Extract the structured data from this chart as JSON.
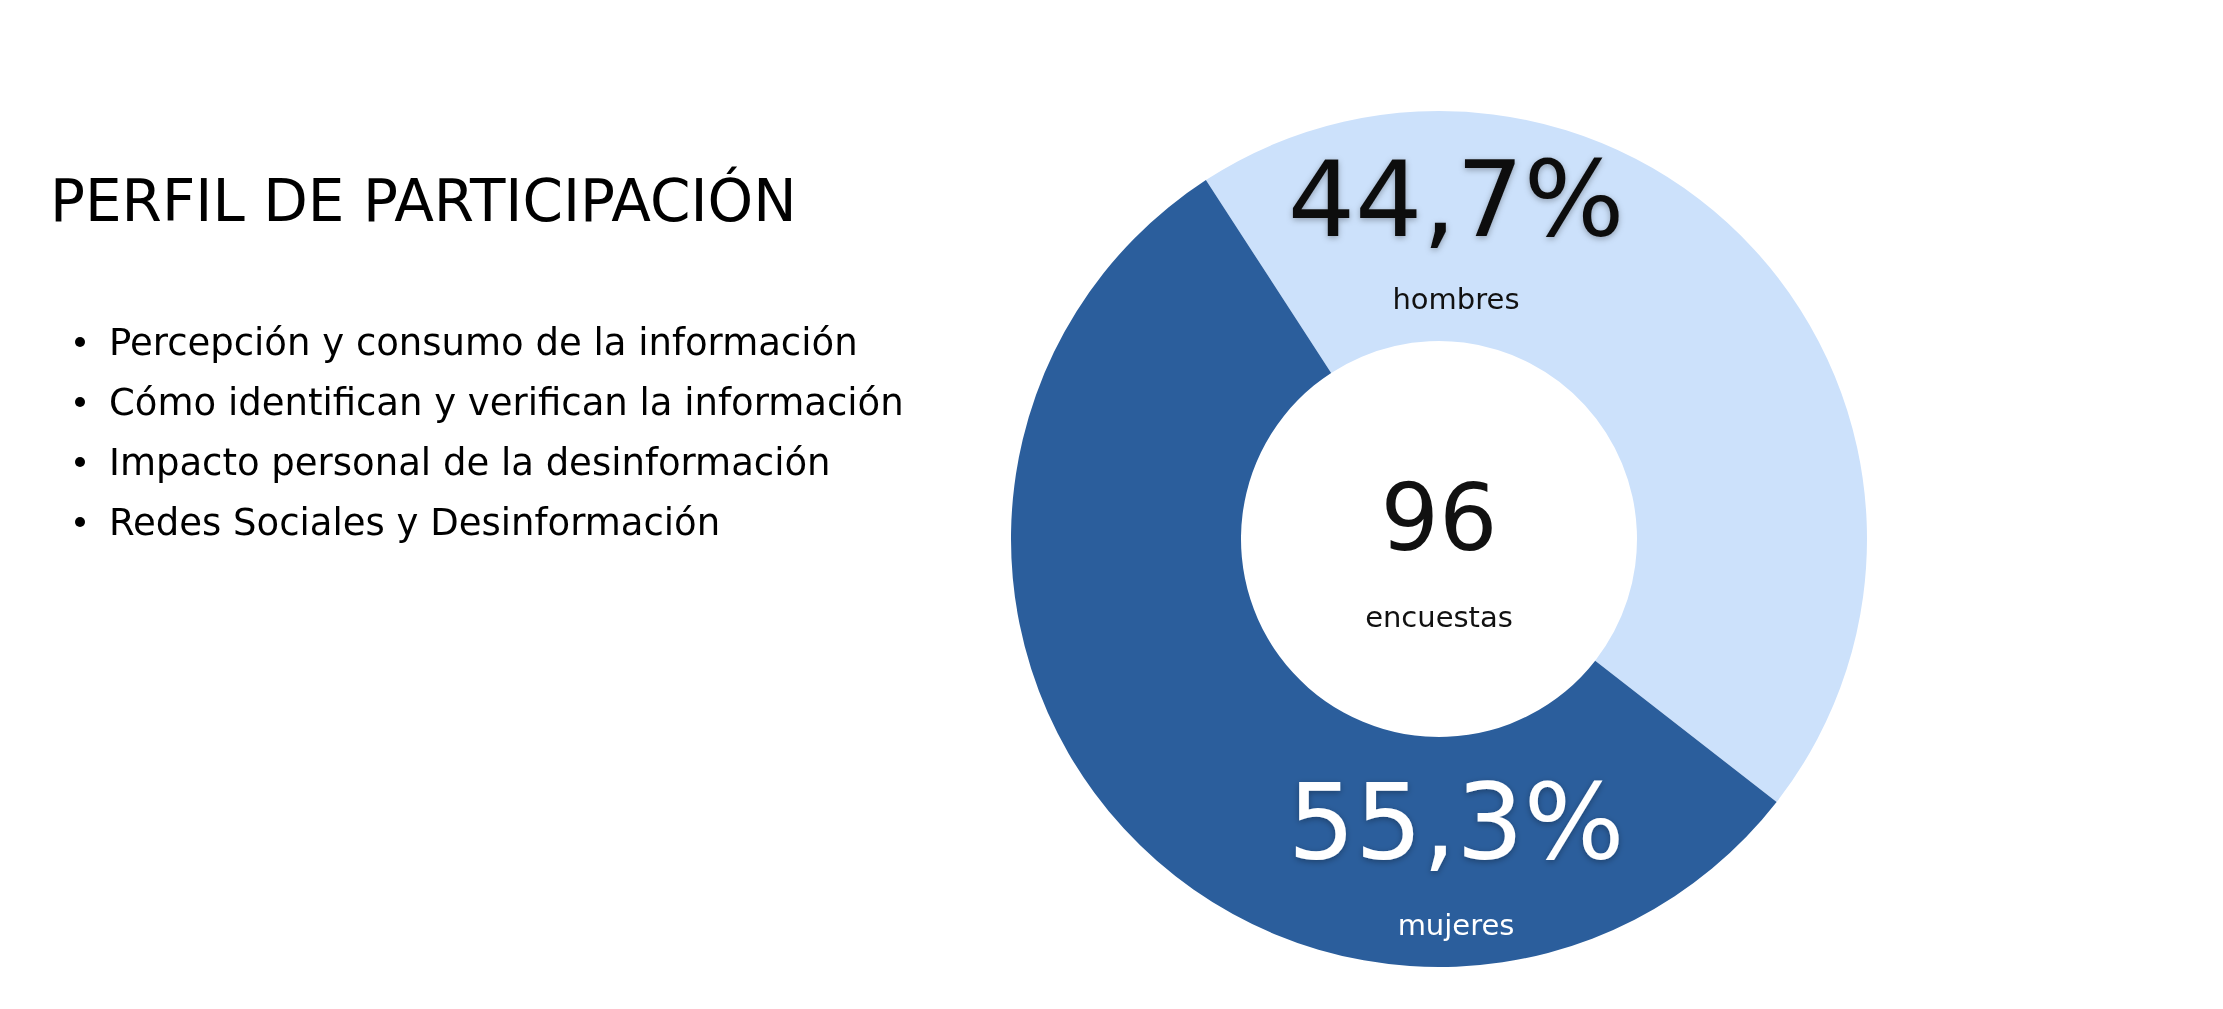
{
  "chart_data": {
    "type": "donut",
    "title": "PERFIL DE PARTICIPACIÓN",
    "categories": [
      "hombres",
      "mujeres"
    ],
    "values": [
      44.7,
      55.3
    ],
    "value_labels": [
      "44,7%",
      "55,3%"
    ],
    "colors": [
      "#cce1fb",
      "#2b5e9c"
    ],
    "annotations": [
      "Percepción y consumo de la información",
      "Cómo identifican y verifican la información",
      "Impacto personal de la desinformación",
      "Redes Sociales y Desinformación",
      "96",
      "encuestas"
    ]
  }
}
